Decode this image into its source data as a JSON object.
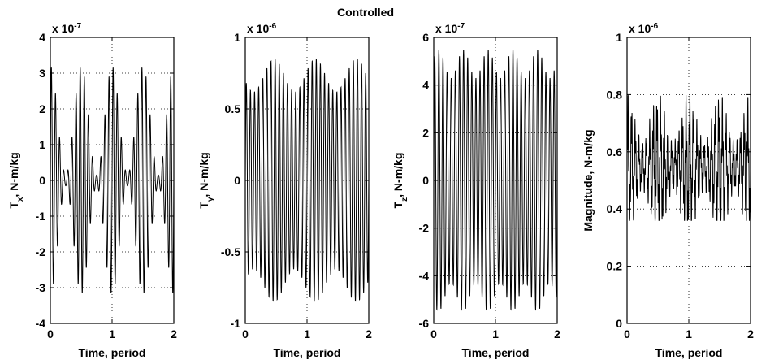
{
  "figure_title": "Controlled",
  "chart_data": [
    {
      "type": "line",
      "xlabel": "Time, period",
      "ylabel": {
        "main": "T",
        "sub": "x",
        "rest": ", N-m/kg"
      },
      "scale_label": {
        "base": "x 10",
        "exp": "-7"
      },
      "xlim": [
        0,
        2
      ],
      "ylim": [
        -4,
        4
      ],
      "xticks": [
        "0",
        "1",
        "2"
      ],
      "yticks": [
        "-4",
        "-3",
        "-2",
        "-1",
        "0",
        "1",
        "2",
        "3",
        "4"
      ],
      "ytick_values": [
        -4,
        -3,
        -2,
        -1,
        0,
        1,
        2,
        3,
        4
      ],
      "grid": true,
      "signal": {
        "kind": "oscillation",
        "cycles": 30,
        "center": 0.0,
        "amplitude_peak": 3.2,
        "amplitude_trough": 0.15,
        "envelope_periods_per_unit": 2.0,
        "envelope_phase": 0.0
      }
    },
    {
      "type": "line",
      "xlabel": "Time, period",
      "ylabel": {
        "main": "T",
        "sub": "y",
        "rest": ", N-m/kg"
      },
      "scale_label": {
        "base": "x 10",
        "exp": "-6"
      },
      "xlim": [
        0,
        2
      ],
      "ylim": [
        -1,
        1
      ],
      "xticks": [
        "0",
        "1",
        "2"
      ],
      "yticks": [
        "-1",
        "-0.5",
        "0",
        "0.5",
        "1"
      ],
      "ytick_values": [
        -1,
        -0.5,
        0,
        0.5,
        1
      ],
      "grid": true,
      "signal": {
        "kind": "oscillation",
        "cycles": 30,
        "center": 0.0,
        "amplitude_peak": 0.85,
        "amplitude_trough": 0.62,
        "envelope_periods_per_unit": 1.5,
        "envelope_phase": 0.3
      }
    },
    {
      "type": "line",
      "xlabel": "Time, period",
      "ylabel": {
        "main": "T",
        "sub": "z",
        "rest": ", N-m/kg"
      },
      "scale_label": {
        "base": "x 10",
        "exp": "-7"
      },
      "xlim": [
        0,
        2
      ],
      "ylim": [
        -6,
        6
      ],
      "xticks": [
        "0",
        "1",
        "2"
      ],
      "yticks": [
        "-6",
        "-4",
        "-2",
        "0",
        "2",
        "4",
        "6"
      ],
      "ytick_values": [
        -6,
        -4,
        -2,
        0,
        2,
        4,
        6
      ],
      "grid": true,
      "signal": {
        "kind": "oscillation",
        "cycles": 30,
        "center": 0.0,
        "amplitude_peak": 5.5,
        "amplitude_trough": 4.3,
        "envelope_periods_per_unit": 2.5,
        "envelope_phase": 0.8
      }
    },
    {
      "type": "line",
      "xlabel": "Time, period",
      "ylabel": {
        "main": "Magnitude, N-m/kg",
        "sub": "",
        "rest": ""
      },
      "scale_label": {
        "base": "x 10",
        "exp": "-6"
      },
      "xlim": [
        0,
        2
      ],
      "ylim": [
        0,
        1
      ],
      "xticks": [
        "0",
        "1",
        "2"
      ],
      "yticks": [
        "0",
        "0.2",
        "0.4",
        "0.6",
        "0.8",
        "1"
      ],
      "ytick_values": [
        0,
        0.2,
        0.4,
        0.6,
        0.8,
        1
      ],
      "grid": true,
      "signal": {
        "kind": "band",
        "cycles": 34,
        "center": 0.55,
        "amplitude_peak": 0.35,
        "amplitude_trough": 0.12,
        "envelope_periods_per_unit": 2.0,
        "envelope_phase": 0.0,
        "y_min": 0.36,
        "y_max": 0.9
      }
    }
  ]
}
